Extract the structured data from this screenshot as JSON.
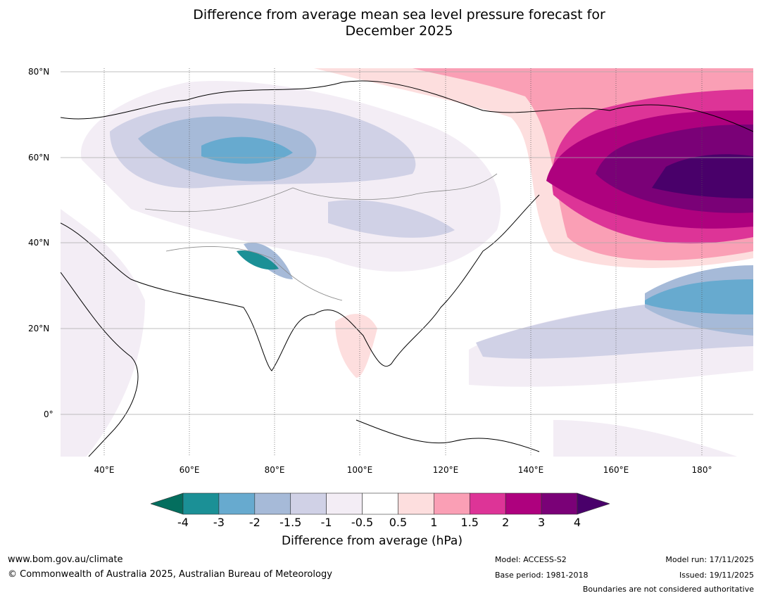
{
  "title_line1": "Difference from average mean sea level pressure forecast for",
  "title_line2": "December 2025",
  "lat_labels": [
    "80°N",
    "60°N",
    "40°N",
    "20°N",
    "0°"
  ],
  "lon_labels": [
    "40°E",
    "60°E",
    "80°E",
    "100°E",
    "120°E",
    "140°E",
    "160°E",
    "180°"
  ],
  "colorbar": {
    "label": "Difference from average (hPa)",
    "ticks": [
      "-4",
      "-3",
      "-2",
      "-1.5",
      "-1",
      "-0.5",
      "0.5",
      "1",
      "1.5",
      "2",
      "3",
      "4"
    ],
    "colors": [
      "#1b9096",
      "#67aacf",
      "#a6bad8",
      "#d0d1e6",
      "#f3edf5",
      "#ffffff",
      "#fddede",
      "#fa9fb5",
      "#dd3497",
      "#ae017e",
      "#7a0177"
    ],
    "extend_low": "#046e5e",
    "extend_high": "#49006a"
  },
  "footer": {
    "website": "www.bom.gov.au/climate",
    "copyright": "© Commonwealth of Australia 2025, Australian Bureau of Meteorology",
    "model": "Model: ACCESS-S2",
    "base_period": "Base period: 1981-2018",
    "model_run": "Model run: 17/11/2025",
    "issued": "Issued: 19/11/2025",
    "disclaimer": "Boundaries are not considered authoritative"
  }
}
